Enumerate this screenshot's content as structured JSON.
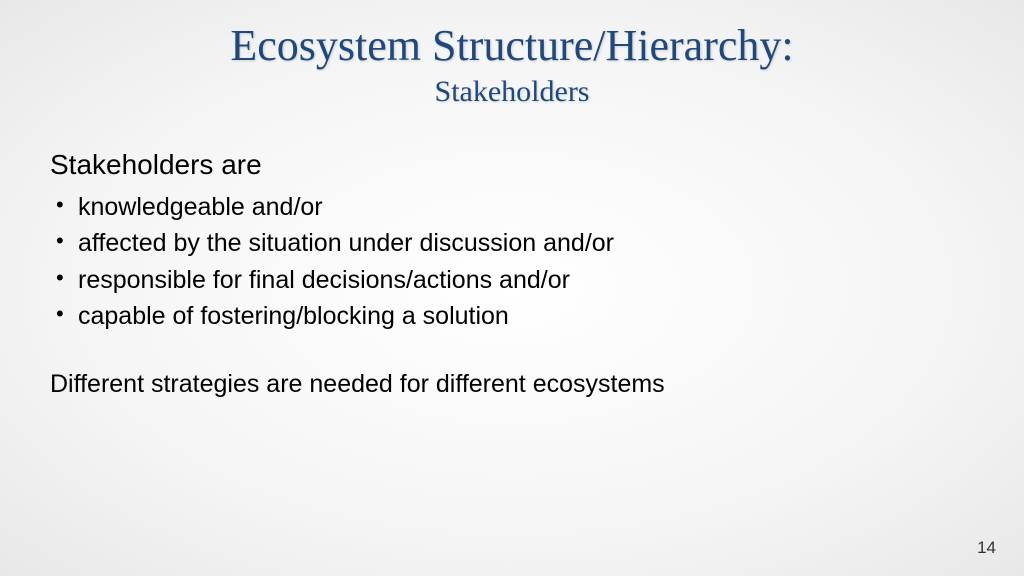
{
  "slide": {
    "title": "Ecosystem Structure/Hierarchy:",
    "subtitle": "Stakeholders",
    "intro": "Stakeholders are",
    "bullets": [
      "knowledgeable and/or",
      "affected by the situation under discussion and/or",
      "responsible for final decisions/actions and/or",
      "capable of fostering/blocking a solution"
    ],
    "closing": "Different strategies are needed for different ecosystems",
    "pageNumber": "14"
  },
  "styling": {
    "title_color": "#1f497d",
    "title_fontsize": 44,
    "subtitle_fontsize": 30,
    "body_fontsize": 25,
    "intro_fontsize": 28,
    "title_font": "Palatino Linotype",
    "body_font": "Century Gothic",
    "body_color": "#000000",
    "background_gradient": [
      "#ffffff",
      "#f5f5f5",
      "#e8e8e8"
    ],
    "page_number_color": "#333333"
  }
}
